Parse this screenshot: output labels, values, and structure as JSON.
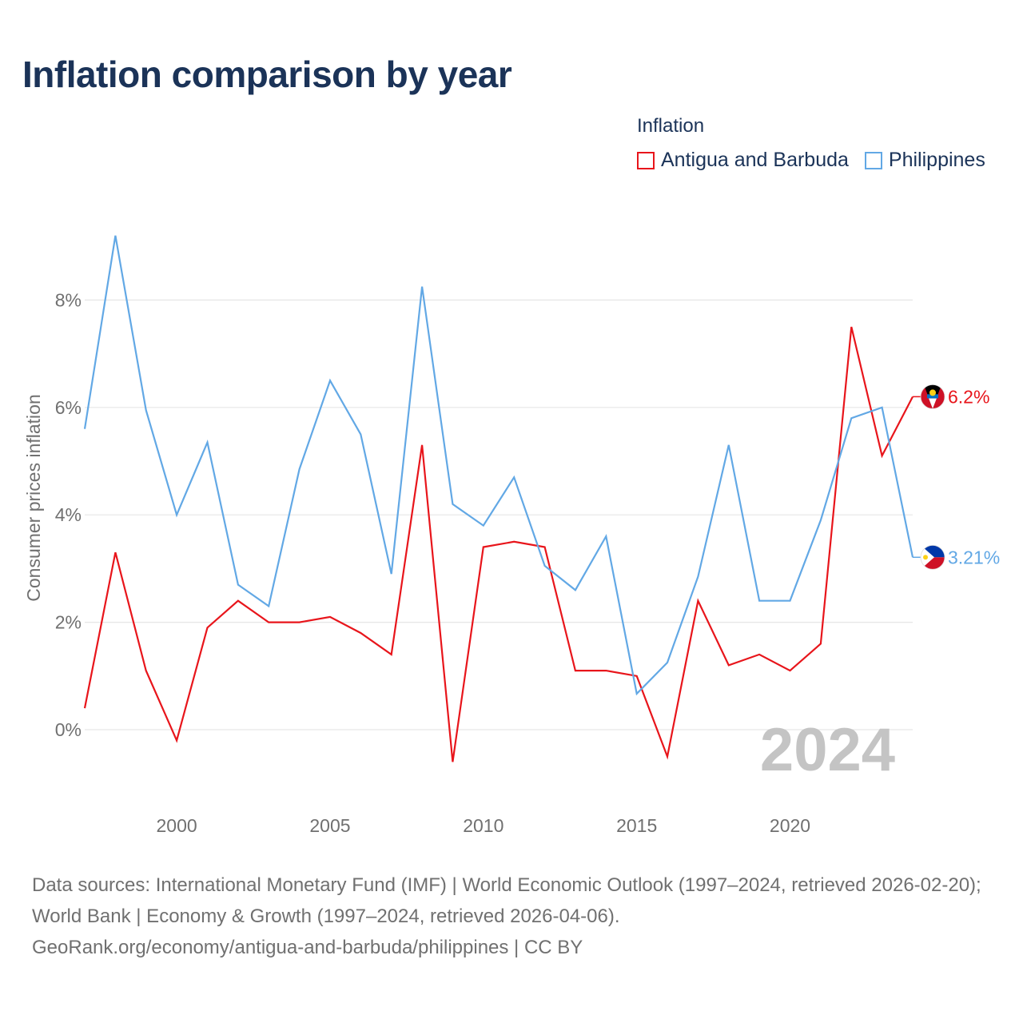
{
  "title": "Inflation comparison by year",
  "legend": {
    "title": "Inflation",
    "items": [
      {
        "label": "Antigua and Barbuda",
        "color": "#e8151b"
      },
      {
        "label": "Philippines",
        "color": "#62a8e5"
      }
    ]
  },
  "year_watermark": "2024",
  "footer": {
    "line1": "Data sources: International Monetary Fund (IMF) | World Economic Outlook (1997–2024, retrieved 2026-02-20); World Bank | Economy & Growth (1997–2024, retrieved 2026-04-06).",
    "line2": "GeoRank.org/economy/antigua-and-barbuda/philippines | CC BY"
  },
  "chart_data": {
    "type": "line",
    "title": "Inflation comparison by year",
    "xlabel": "",
    "ylabel": "Consumer prices inflation",
    "xlim": [
      1997,
      2024
    ],
    "ylim": [
      -1.2,
      9.5
    ],
    "x_ticks": [
      2000,
      2005,
      2010,
      2015,
      2020
    ],
    "y_ticks": [
      0,
      2,
      4,
      6,
      8
    ],
    "y_tick_labels": [
      "0%",
      "2%",
      "4%",
      "6%",
      "8%"
    ],
    "grid": true,
    "x": [
      1997,
      1998,
      1999,
      2000,
      2001,
      2002,
      2003,
      2004,
      2005,
      2006,
      2007,
      2008,
      2009,
      2010,
      2011,
      2012,
      2013,
      2014,
      2015,
      2016,
      2017,
      2018,
      2019,
      2020,
      2021,
      2022,
      2023,
      2024
    ],
    "series": [
      {
        "name": "Antigua and Barbuda",
        "color": "#e8151b",
        "end_label": "6.2%",
        "flag": "antigua-and-barbuda-flag-icon",
        "values": [
          0.4,
          3.3,
          1.1,
          -0.2,
          1.9,
          2.4,
          2.0,
          2.0,
          2.1,
          1.8,
          1.4,
          5.3,
          -0.6,
          3.4,
          3.5,
          3.4,
          1.1,
          1.1,
          1.0,
          -0.5,
          2.4,
          1.2,
          1.4,
          1.1,
          1.6,
          7.5,
          5.1,
          6.2
        ]
      },
      {
        "name": "Philippines",
        "color": "#62a8e5",
        "end_label": "3.21%",
        "flag": "philippines-flag-icon",
        "values": [
          5.6,
          9.2,
          5.95,
          4.0,
          5.35,
          2.7,
          2.3,
          4.85,
          6.5,
          5.5,
          2.9,
          8.25,
          4.2,
          3.8,
          4.7,
          3.05,
          2.6,
          3.6,
          0.67,
          1.25,
          2.85,
          5.3,
          2.4,
          2.4,
          3.9,
          5.8,
          6.0,
          3.21
        ]
      }
    ]
  }
}
